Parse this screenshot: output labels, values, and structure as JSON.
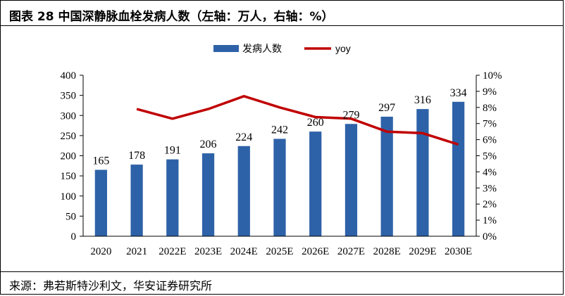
{
  "title": "图表 28  中国深静脉血栓发病人数（左轴：万人，右轴：%）",
  "source": "来源：弗若斯特沙利文，华安证券研究所",
  "chart_data": {
    "type": "bar",
    "categories": [
      "2020",
      "2021",
      "2022E",
      "2023E",
      "2024E",
      "2025E",
      "2026E",
      "2027E",
      "2028E",
      "2029E",
      "2030E"
    ],
    "series": [
      {
        "name": "发病人数",
        "type": "bar",
        "axis": "left",
        "values": [
          165,
          178,
          191,
          206,
          224,
          242,
          260,
          279,
          297,
          316,
          334
        ],
        "color": "#2e62a8"
      },
      {
        "name": "yoy",
        "type": "line",
        "axis": "right",
        "values": [
          null,
          7.9,
          7.3,
          7.9,
          8.7,
          8.0,
          7.4,
          7.3,
          6.5,
          6.4,
          5.7
        ],
        "color": "#c00000"
      }
    ],
    "left_axis": {
      "ylim": [
        0,
        400
      ],
      "ticks": [
        "0",
        "50",
        "100",
        "150",
        "200",
        "250",
        "300",
        "350",
        "400"
      ]
    },
    "right_axis": {
      "ylim": [
        0,
        10
      ],
      "ticks": [
        "0%",
        "1%",
        "2%",
        "3%",
        "4%",
        "5%",
        "6%",
        "7%",
        "8%",
        "9%",
        "10%"
      ]
    },
    "data_labels": [
      "165",
      "178",
      "191",
      "206",
      "224",
      "242",
      "260",
      "279",
      "297",
      "316",
      "334"
    ],
    "legend_position": "top-center",
    "grid": false
  }
}
